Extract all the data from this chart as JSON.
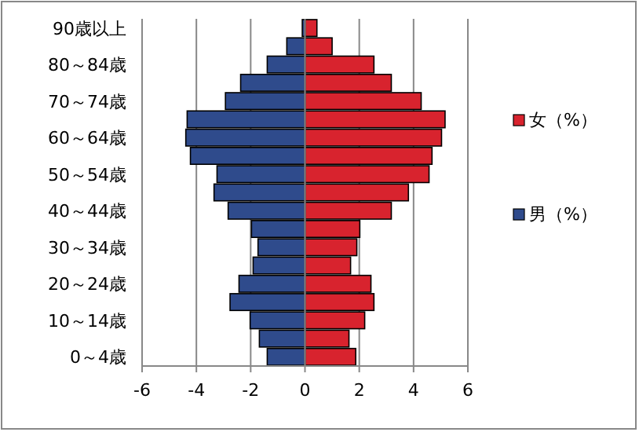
{
  "chart_data": {
    "type": "bar",
    "orientation": "horizontal",
    "stacked": true,
    "categories": [
      "90歳以上",
      null,
      "80～84歳",
      null,
      "70～74歳",
      null,
      "60～64歳",
      null,
      "50～54歳",
      null,
      "40～44歳",
      null,
      "30～34歳",
      null,
      "20～24歳",
      null,
      "10～14歳",
      null,
      "0～4歳"
    ],
    "series": [
      {
        "name": "女（%）",
        "color": "#d8232e",
        "values": [
          0.44,
          1.0,
          2.54,
          3.18,
          4.28,
          5.16,
          5.03,
          4.68,
          4.57,
          3.81,
          3.18,
          2.02,
          1.91,
          1.68,
          2.43,
          2.54,
          2.2,
          1.62,
          1.87
        ]
      },
      {
        "name": "男（%）",
        "color": "#2f4b8c",
        "values": [
          -0.1,
          -0.67,
          -1.39,
          -2.37,
          -2.93,
          -4.34,
          -4.39,
          -4.22,
          -3.24,
          -3.35,
          -2.83,
          -1.97,
          -1.73,
          -1.91,
          -2.43,
          -2.76,
          -2.02,
          -1.68,
          -1.39
        ]
      }
    ],
    "xlim": [
      -6,
      6
    ],
    "xticks": [
      -6,
      -4,
      -2,
      0,
      2,
      4,
      6
    ],
    "grid": "x",
    "legend": "right"
  }
}
